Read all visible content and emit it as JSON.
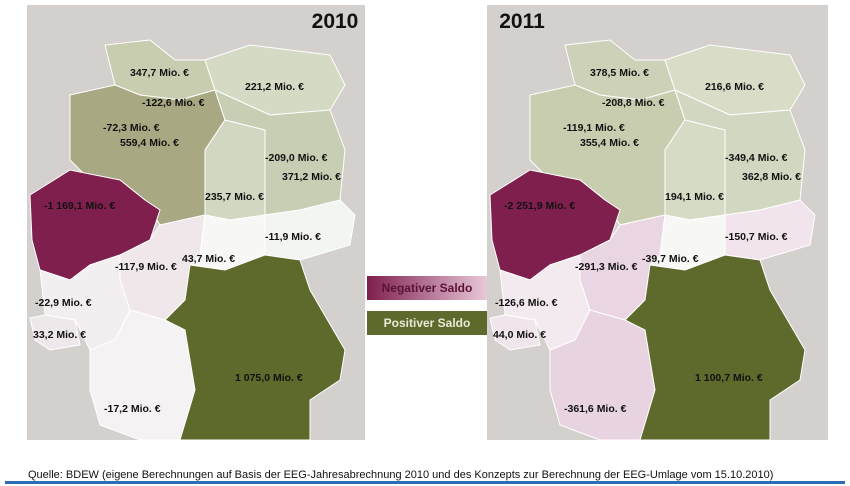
{
  "maps": [
    {
      "year": "2010",
      "labels": [
        "347,7 Mio. €",
        "221,2 Mio. €",
        "-122,6 Mio. €",
        "-72,3 Mio. €",
        "559,4 Mio. €",
        "-209,0 Mio. €",
        "371,2 Mio. €",
        "235,7 Mio. €",
        "-1 169,1 Mio. €",
        "-11,9 Mio. €",
        "43,7 Mio. €",
        "-117,9 Mio. €",
        "-22,9 Mio. €",
        "33,2 Mio. €",
        "1 075,0 Mio. €",
        "-17,2 Mio. €"
      ]
    },
    {
      "year": "2011",
      "labels": [
        "378,5 Mio. €",
        "216,6 Mio. €",
        "-208,8 Mio. €",
        "-119,1 Mio. €",
        "355,4 Mio. €",
        "-349,4 Mio. €",
        "362,8 Mio. €",
        "194,1 Mio. €",
        "-2 251,9 Mio. €",
        "-150,7 Mio. €",
        "-39,7 Mio. €",
        "-291,3 Mio. €",
        "-126,6 Mio. €",
        "44,0 Mio. €",
        "1 100,7 Mio. €",
        "-361,6 Mio. €"
      ]
    }
  ],
  "legend": {
    "negative": "Negativer Saldo",
    "positive": "Positiver Saldo"
  },
  "source": "Quelle: BDEW (eigene Berechnungen auf Basis der EEG-Jahresabrechnung 2010 und des Konzepts zur Berechnung der EEG-Umlage vom 15.10.2010)"
}
